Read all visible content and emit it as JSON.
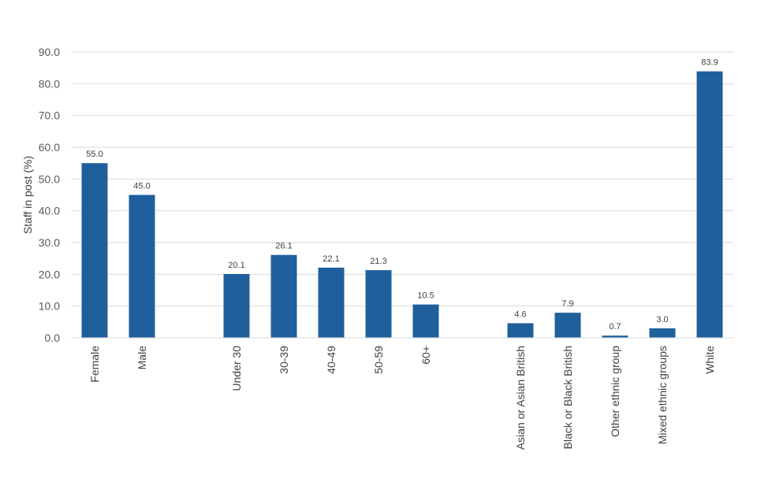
{
  "chart_data": {
    "type": "bar",
    "title": "",
    "xlabel": "",
    "ylabel": "Staff in post (%)",
    "ylim": [
      0,
      90
    ],
    "ytick_step": 10,
    "ytick_format": "one-decimal",
    "grid": true,
    "legend": "none",
    "bar_color": "#1f5f9c",
    "grid_color": "#d9d9d9",
    "groups": [
      {
        "categories": [
          "Female",
          "Male"
        ],
        "values": [
          55.0,
          45.0
        ]
      },
      {
        "categories": [
          "Under 30",
          "30-39",
          "40-49",
          "50-59",
          "60+"
        ],
        "values": [
          20.1,
          26.1,
          22.1,
          21.3,
          10.5
        ]
      },
      {
        "categories": [
          "Asian or Asian British",
          "Black or Black British",
          "Other ethnic group",
          "Mixed ethnic groups",
          "White"
        ],
        "values": [
          4.6,
          7.9,
          0.7,
          3.0,
          83.9
        ]
      }
    ]
  }
}
